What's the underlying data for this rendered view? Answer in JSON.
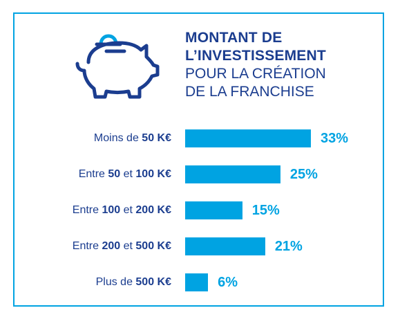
{
  "title": {
    "line1": "MONTANT DE",
    "line2": "L’INVESTISSEMENT",
    "line3": "POUR LA CRÉATION",
    "line4": "DE LA FRANCHISE"
  },
  "colors": {
    "accent": "#00a3e2",
    "text": "#1b3d8f",
    "icon": "#1b3d8f"
  },
  "icon": "piggy-bank-icon",
  "chart_data": {
    "type": "bar",
    "orientation": "horizontal",
    "title": "MONTANT DE L’INVESTISSEMENT POUR LA CRÉATION DE LA FRANCHISE",
    "categories": [
      "Moins de 50 K€",
      "Entre 50 et 100 K€",
      "Entre 100 et 200 K€",
      "Entre 200 et 500 K€",
      "Plus de 500 K€"
    ],
    "values": [
      33,
      25,
      15,
      21,
      6
    ],
    "value_labels": [
      "33%",
      "25%",
      "15%",
      "21%",
      "6%"
    ],
    "label_parts": [
      [
        {
          "t": "Moins de ",
          "b": false
        },
        {
          "t": "50 K€",
          "b": true
        }
      ],
      [
        {
          "t": "Entre ",
          "b": false
        },
        {
          "t": "50",
          "b": true
        },
        {
          "t": " et ",
          "b": false
        },
        {
          "t": "100 K€",
          "b": true
        }
      ],
      [
        {
          "t": "Entre ",
          "b": false
        },
        {
          "t": "100",
          "b": true
        },
        {
          "t": " et ",
          "b": false
        },
        {
          "t": "200 K€",
          "b": true
        }
      ],
      [
        {
          "t": "Entre ",
          "b": false
        },
        {
          "t": "200",
          "b": true
        },
        {
          "t": " et ",
          "b": false
        },
        {
          "t": "500 K€",
          "b": true
        }
      ],
      [
        {
          "t": "Plus de ",
          "b": false
        },
        {
          "t": "500 K€",
          "b": true
        }
      ]
    ],
    "grid": false,
    "legend": "none"
  }
}
